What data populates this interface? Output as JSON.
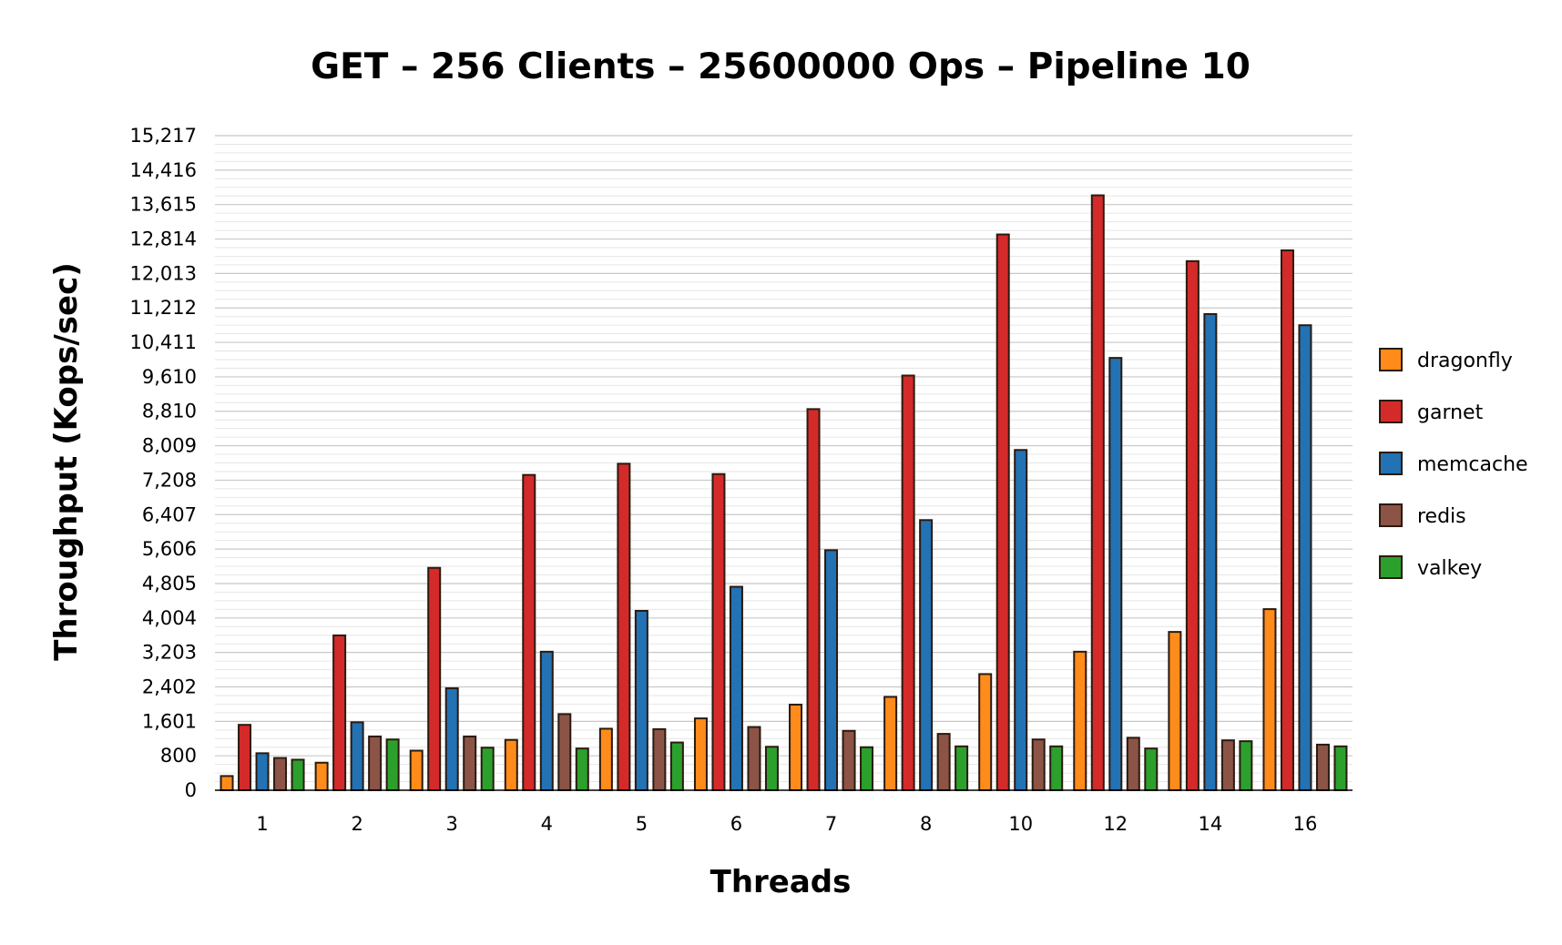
{
  "chart_data": {
    "type": "bar",
    "title": "GET – 256 Clients – 25600000 Ops – Pipeline 10",
    "xlabel": "Threads",
    "ylabel": "Throughput (Kops/sec)",
    "ylim": [
      0,
      15217
    ],
    "yticks": [
      0,
      800,
      1601,
      2402,
      3203,
      4004,
      4805,
      5606,
      6407,
      7208,
      8009,
      8810,
      9610,
      10411,
      11212,
      12013,
      12814,
      13615,
      14416,
      15217
    ],
    "ytick_labels": [
      "0",
      "800",
      "1,601",
      "2,402",
      "3,203",
      "4,004",
      "4,805",
      "5,606",
      "6,407",
      "7,208",
      "8,009",
      "8,810",
      "9,610",
      "10,411",
      "11,212",
      "12,013",
      "12,814",
      "13,615",
      "14,416",
      "15,217"
    ],
    "grid": true,
    "legend_position": "right",
    "categories": [
      "1",
      "2",
      "3",
      "4",
      "5",
      "6",
      "7",
      "8",
      "10",
      "12",
      "14",
      "16"
    ],
    "series": [
      {
        "name": "dragonfly",
        "color": "#ff8c1a",
        "values": [
          330,
          640,
          920,
          1170,
          1430,
          1670,
          1990,
          2170,
          2700,
          3220,
          3680,
          4210
        ]
      },
      {
        "name": "garnet",
        "color": "#d42a2a",
        "values": [
          1520,
          3600,
          5170,
          7330,
          7590,
          7350,
          8860,
          9640,
          12920,
          13830,
          12300,
          12550
        ]
      },
      {
        "name": "memcache",
        "color": "#2272b4",
        "values": [
          860,
          1580,
          2370,
          3220,
          4170,
          4730,
          5580,
          6280,
          7910,
          10050,
          11070,
          10810
        ]
      },
      {
        "name": "redis",
        "color": "#8b5447",
        "values": [
          750,
          1250,
          1250,
          1770,
          1420,
          1470,
          1380,
          1310,
          1180,
          1220,
          1160,
          1060
        ]
      },
      {
        "name": "valkey",
        "color": "#2ca02c",
        "values": [
          710,
          1180,
          990,
          970,
          1110,
          1010,
          1000,
          1020,
          1020,
          970,
          1140,
          1020
        ]
      }
    ]
  }
}
